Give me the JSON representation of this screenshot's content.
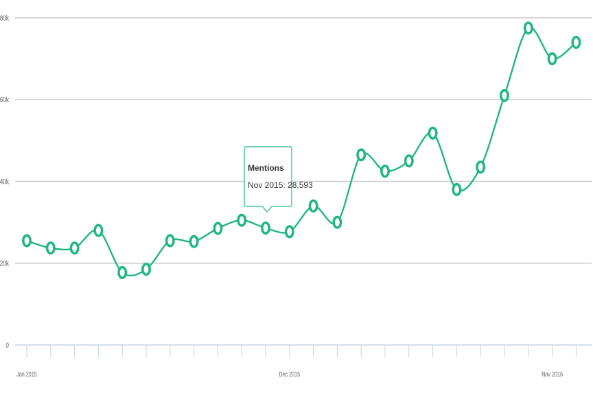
{
  "chart_data": {
    "type": "line",
    "title": "",
    "xlabel": "",
    "ylabel": "",
    "ylim": [
      0,
      80000
    ],
    "y_ticks": [
      {
        "value": 0,
        "label": "0"
      },
      {
        "value": 20000,
        "label": "20k"
      },
      {
        "value": 40000,
        "label": "40k"
      },
      {
        "value": 60000,
        "label": "60k"
      },
      {
        "value": 80000,
        "label": "80k"
      }
    ],
    "x_tick_labels": [
      {
        "index": 0,
        "label": "Jan 2015"
      },
      {
        "index": 11,
        "label": "Dec 2015"
      },
      {
        "index": 22,
        "label": "Nov 2016"
      }
    ],
    "grid": true,
    "legend": "none",
    "series": [
      {
        "name": "Mentions",
        "color": "#1fb77f",
        "values": [
          25500,
          23700,
          23700,
          28000,
          17700,
          18500,
          25500,
          25300,
          28500,
          30500,
          28593,
          27700,
          34000,
          30000,
          46500,
          42500,
          45000,
          51800,
          38000,
          43500,
          61000,
          77500,
          70000,
          74000
        ]
      }
    ],
    "tooltip": {
      "point_index": 10,
      "title": "Mentions",
      "text": "Nov 2015: 28,593"
    }
  }
}
